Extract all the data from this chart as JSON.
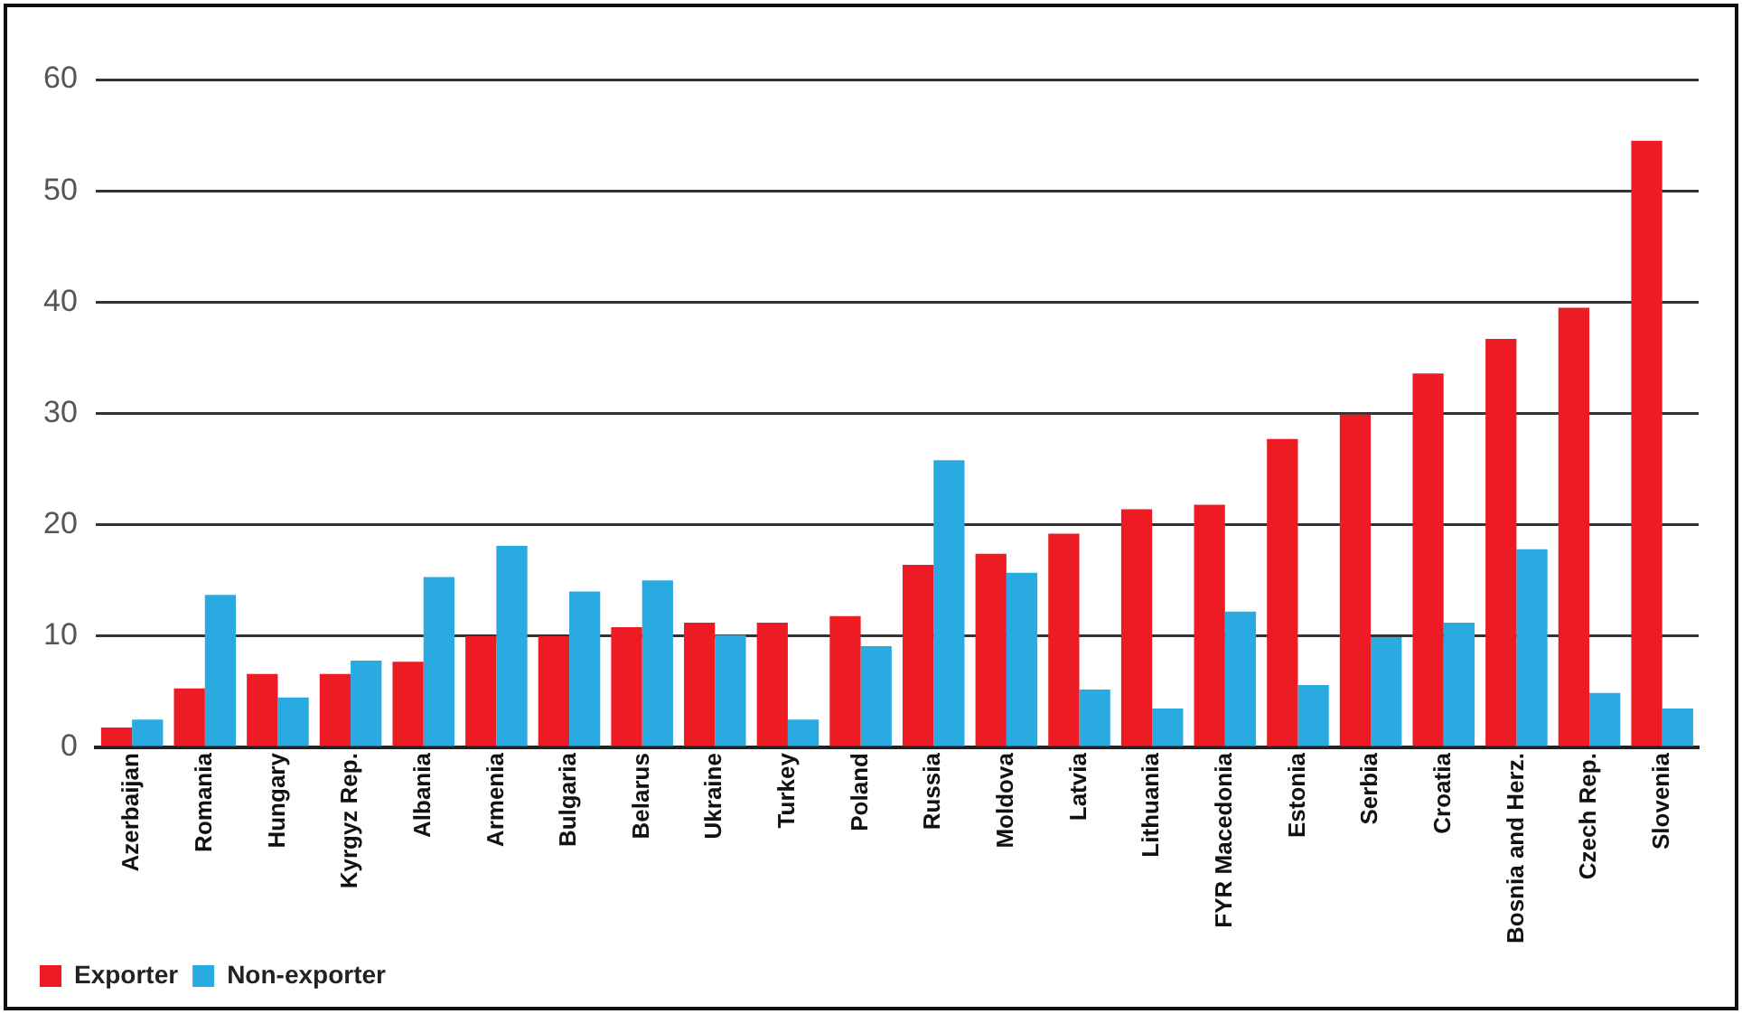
{
  "chart_data": {
    "type": "bar",
    "categories": [
      "Azerbaijan",
      "Romania",
      "Hungary",
      "Kyrgyz Rep.",
      "Albania",
      "Armenia",
      "Bulgaria",
      "Belarus",
      "Ukraine",
      "Turkey",
      "Poland",
      "Russia",
      "Moldova",
      "Latvia",
      "Lithuania",
      "FYR Macedonia",
      "Estonia",
      "Serbia",
      "Croatia",
      "Bosnia and Herz.",
      "Czech Rep.",
      "Slovenia"
    ],
    "series": [
      {
        "name": "Exporter",
        "color": "#ed1c24",
        "values": [
          1.8,
          5.3,
          6.6,
          6.6,
          7.7,
          10,
          10,
          10.8,
          11.2,
          11.2,
          11.8,
          16.4,
          17.4,
          19.2,
          21.4,
          21.8,
          27.7,
          29.9,
          33.6,
          36.7,
          39.5,
          54.5
        ]
      },
      {
        "name": "Non-exporter",
        "color": "#29abe2",
        "values": [
          2.5,
          13.7,
          4.5,
          7.8,
          15.3,
          18.1,
          14,
          15,
          10.1,
          2.5,
          9.1,
          25.8,
          15.7,
          5.2,
          3.5,
          12.2,
          5.6,
          9.9,
          11.2,
          17.8,
          4.9,
          3.5
        ]
      }
    ],
    "ylim": [
      0,
      60
    ],
    "yticks": [
      0,
      10,
      20,
      30,
      40,
      50,
      60
    ],
    "grid": "y",
    "legend": "bottom left"
  }
}
